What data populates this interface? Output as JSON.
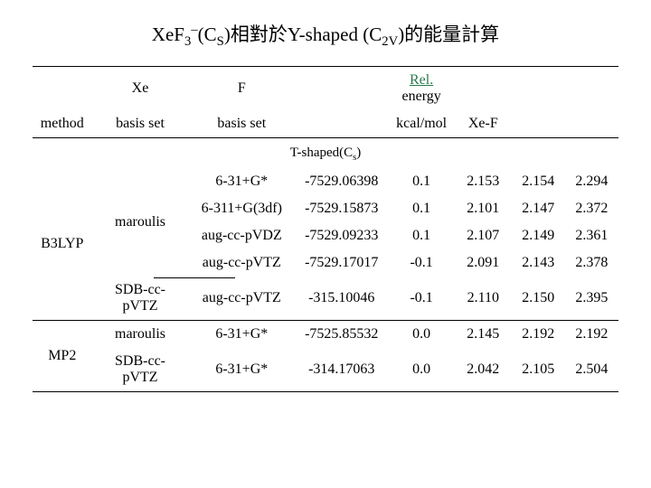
{
  "title": {
    "prefix1": "XeF",
    "sub1": "3",
    "sup1": "–",
    "cs_open": "(C",
    "cs_sub": "S",
    "cs_close": ")",
    "mid": "相對於Y-shaped (C",
    "c2v_sub": "2V",
    "suffix": ")的能量計算"
  },
  "headers": {
    "method": "method",
    "xe": "Xe",
    "xe_sub": "basis set",
    "f": "F",
    "f_sub": "basis set",
    "rel": "Rel.",
    "rel_sub1": "energy",
    "rel_sub2": "kcal/mol",
    "xef": "Xe-F"
  },
  "section": {
    "label_a": "T-shaped(C",
    "label_sub": "s",
    "label_b": ")"
  },
  "groups": [
    {
      "method": "B3LYP",
      "xe_groups": [
        {
          "xe": "maroulis",
          "rows": [
            {
              "f": "6-31+G*",
              "e": "-7529.06398",
              "rel": "0.1",
              "xef": "2.153",
              "a": "2.154",
              "b": "2.294"
            },
            {
              "f": "6-311+G(3df)",
              "e": "-7529.15873",
              "rel": "0.1",
              "xef": "2.101",
              "a": "2.147",
              "b": "2.372"
            },
            {
              "f": "aug-cc-pVDZ",
              "e": "-7529.09233",
              "rel": "0.1",
              "xef": "2.107",
              "a": "2.149",
              "b": "2.361"
            },
            {
              "f": "aug-cc-pVTZ",
              "e": "-7529.17017",
              "rel": "-0.1",
              "xef": "2.091",
              "a": "2.143",
              "b": "2.378"
            }
          ]
        },
        {
          "xe": "SDB-cc-pVTZ",
          "rows": [
            {
              "f": "aug-cc-pVTZ",
              "e": "-315.10046",
              "rel": "-0.1",
              "xef": "2.110",
              "a": "2.150",
              "b": "2.395"
            }
          ]
        }
      ]
    },
    {
      "method": "MP2",
      "xe_groups": [
        {
          "xe": "maroulis",
          "rows": [
            {
              "f": "6-31+G*",
              "e": "-7525.85532",
              "rel": "0.0",
              "xef": "2.145",
              "a": "2.192",
              "b": "2.192"
            }
          ]
        },
        {
          "xe": "SDB-cc-pVTZ",
          "rows": [
            {
              "f": "6-31+G*",
              "e": "-314.17063",
              "rel": "0.0",
              "xef": "2.042",
              "a": "2.105",
              "b": "2.504"
            }
          ]
        }
      ]
    }
  ]
}
